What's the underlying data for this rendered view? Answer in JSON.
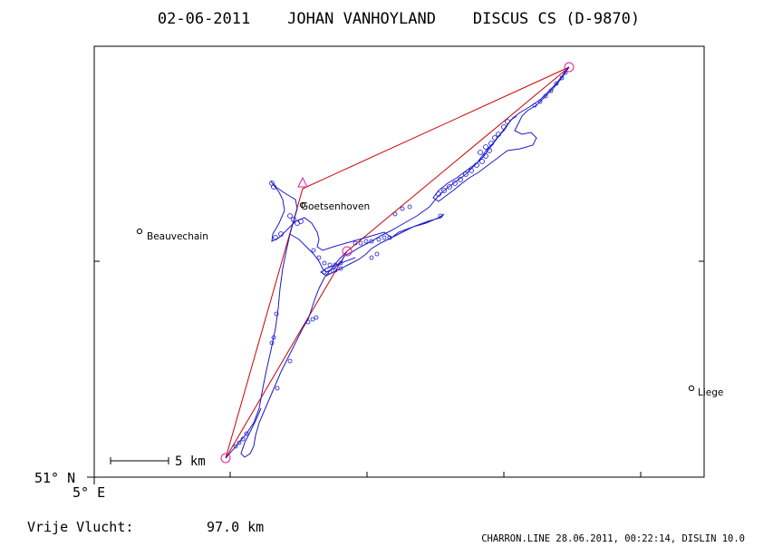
{
  "title": "02-06-2011    JOHAN VANHOYLAND    DISCUS CS (D-9870)",
  "corner": {
    "lat": "51° N",
    "lon": "5° E"
  },
  "scale_bar": {
    "label": "5 km"
  },
  "places": [
    {
      "name": "Beauvechain"
    },
    {
      "name": "Goetsenhoven"
    },
    {
      "name": "Liege"
    }
  ],
  "footer": {
    "distance_label": "Vrije Vlucht:",
    "distance_value": "97.0 km",
    "credit": "CHARRON.LINE 28.06.2011, 00:22:14, DISLIN 10.0"
  },
  "colors": {
    "frame": "#000000",
    "task_line": "#cc0000",
    "flight_track": "#1a1acc",
    "turnpoint_marker": "#e0209a"
  }
}
